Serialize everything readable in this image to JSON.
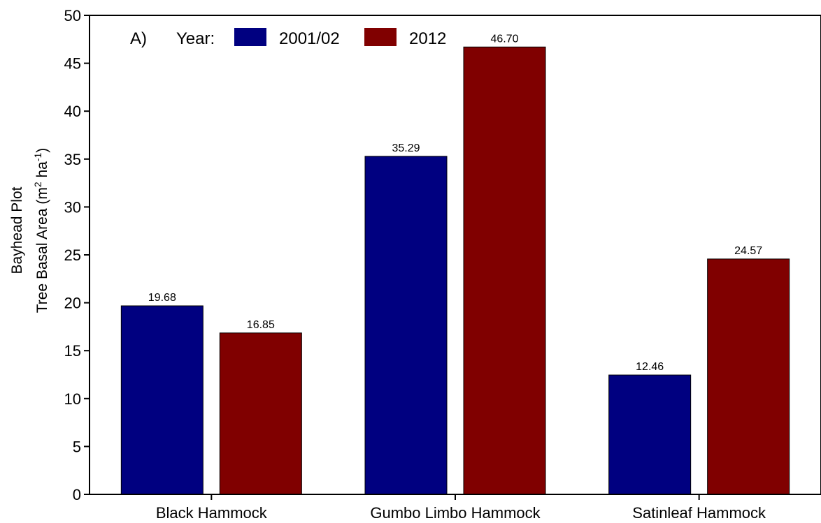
{
  "chart_data": {
    "type": "bar",
    "panel_label": "A)",
    "legend": {
      "title": "Year:",
      "placement": "top-left"
    },
    "ylabel_line1": "Bayhead Plot",
    "ylabel_line2_prefix": "Tree Basal Area (m",
    "ylabel_sup1": "2",
    "ylabel_mid": " ha",
    "ylabel_sup2": "-1",
    "ylabel_suffix": ")",
    "xlabel": "",
    "categories": [
      "Black Hammock",
      "Gumbo Limbo Hammock",
      "Satinleaf Hammock"
    ],
    "series": [
      {
        "name": "2001/02",
        "color": "#000080",
        "values": [
          19.68,
          35.29,
          12.46
        ],
        "labels": [
          "19.68",
          "35.29",
          "12.46"
        ]
      },
      {
        "name": "2012",
        "color": "#800000",
        "values": [
          16.85,
          46.7,
          24.57
        ],
        "labels": [
          "16.85",
          "46.70",
          "24.57"
        ]
      }
    ],
    "ylim": [
      0,
      50
    ],
    "yticks": [
      0,
      5,
      10,
      15,
      20,
      25,
      30,
      35,
      40,
      45,
      50
    ],
    "grid": false
  }
}
